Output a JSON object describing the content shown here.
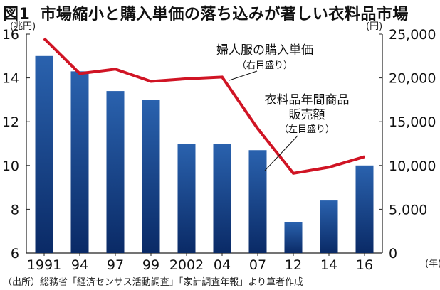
{
  "title": {
    "figure_number": "図1",
    "text": "市場縮小と購入単価の落ち込みが著しい衣料品市場"
  },
  "source": "（出所）総務省「経済センサス活動調査」「家計調査年報」より筆者作成",
  "colors": {
    "bar_top": "#2a62ae",
    "bar_bottom": "#0a2a66",
    "line": "#d01424",
    "axis": "#222222"
  },
  "chart_data": {
    "type": "bar+line",
    "title": "市場縮小と購入単価の落ち込みが著しい衣料品市場",
    "categories": [
      "1991",
      "94",
      "97",
      "99",
      "2002",
      "04",
      "07",
      "12",
      "14",
      "16"
    ],
    "x_unit": "(年)",
    "left_axis": {
      "unit": "(兆円)",
      "ylim": [
        6,
        16
      ],
      "ticks": [
        "6",
        "8",
        "10",
        "12",
        "14",
        "16"
      ]
    },
    "right_axis": {
      "unit": "(円)",
      "ylim": [
        0,
        25000
      ],
      "ticks": [
        "0",
        "5,000",
        "10,000",
        "15,000",
        "20,000",
        "25,000"
      ]
    },
    "series": [
      {
        "name": "衣料品年間商品販売額",
        "type": "bar",
        "axis": "left",
        "label_lines": [
          "衣料品年間商品",
          "販売額"
        ],
        "axis_note": "（左目盛り）",
        "values": [
          15.0,
          14.3,
          13.4,
          13.0,
          11.0,
          11.0,
          10.7,
          7.4,
          8.4,
          10.0
        ]
      },
      {
        "name": "婦人服の購入単価",
        "type": "line",
        "axis": "right",
        "label_lines": [
          "婦人服の購入単価"
        ],
        "axis_note": "（右目盛り）",
        "values": [
          24500,
          20500,
          21000,
          19600,
          19900,
          20100,
          14200,
          9100,
          9800,
          11000
        ]
      }
    ]
  }
}
